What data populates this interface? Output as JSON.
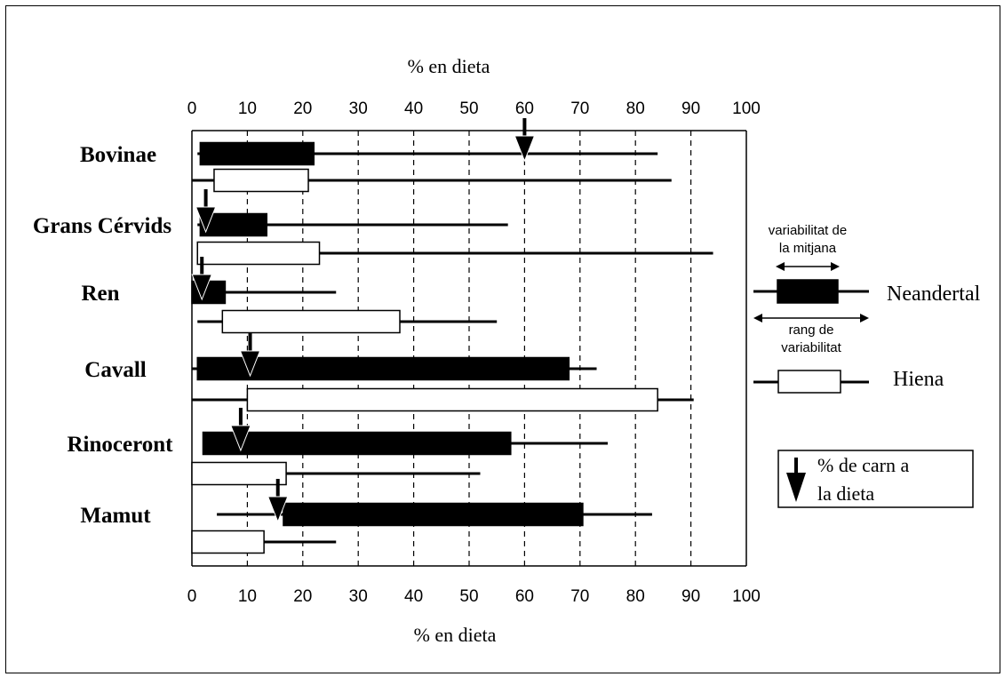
{
  "chart_data": {
    "type": "bar",
    "title": "",
    "xlabel_top": "% en dieta",
    "xlabel_bottom": "% en dieta",
    "xlim": [
      0,
      100
    ],
    "ticks": [
      "0",
      "10",
      "20",
      "30",
      "40",
      "50",
      "60",
      "70",
      "80",
      "90",
      "100"
    ],
    "grid": "vertical dashed at 10..90",
    "categories": [
      "Bovinae",
      "Grans Cérvids",
      "Ren",
      "Cavall",
      "Rinoceront",
      "Mamut"
    ],
    "series": [
      {
        "name": "Neandertal",
        "fill": "#000000",
        "data": [
          {
            "category": "Bovinae",
            "range": [
              1,
              84
            ],
            "box": [
              1.5,
              22
            ]
          },
          {
            "category": "Grans Cérvids",
            "range": [
              1,
              57
            ],
            "box": [
              1.5,
              13.5
            ]
          },
          {
            "category": "Ren",
            "range": [
              0,
              26
            ],
            "box": [
              0,
              6
            ]
          },
          {
            "category": "Cavall",
            "range": [
              0,
              73
            ],
            "box": [
              1,
              68
            ]
          },
          {
            "category": "Rinoceront",
            "range": [
              2,
              75
            ],
            "box": [
              2,
              57.5
            ]
          },
          {
            "category": "Mamut",
            "range": [
              4.5,
              83
            ],
            "box": [
              16.5,
              70.5
            ]
          }
        ]
      },
      {
        "name": "Hiena",
        "fill": "#ffffff",
        "data": [
          {
            "category": "Bovinae",
            "range": [
              0,
              86.5
            ],
            "box": [
              4,
              21
            ]
          },
          {
            "category": "Grans Cérvids",
            "range": [
              1,
              94
            ],
            "box": [
              1,
              23
            ]
          },
          {
            "category": "Ren",
            "range": [
              1,
              55
            ],
            "box": [
              5.5,
              37.5
            ]
          },
          {
            "category": "Cavall",
            "range": [
              0,
              90.5
            ],
            "box": [
              10,
              84
            ]
          },
          {
            "category": "Rinoceront",
            "range": [
              0,
              52
            ],
            "box": [
              0,
              17
            ]
          },
          {
            "category": "Mamut",
            "range": [
              0,
              26
            ],
            "box": [
              0,
              13
            ]
          }
        ]
      }
    ],
    "meat_percentage_arrows": [
      {
        "category": "Bovinae",
        "value": 60
      },
      {
        "category": "Grans Cérvids",
        "value": 2.5
      },
      {
        "category": "Ren",
        "value": 1.8
      },
      {
        "category": "Cavall",
        "value": 10.5
      },
      {
        "category": "Rinoceront",
        "value": 8.8
      },
      {
        "category": "Mamut",
        "value": 15.5
      }
    ],
    "legend": {
      "placement": "right",
      "box_label": [
        "variabilitat de",
        "la mitjana"
      ],
      "range_label": [
        "rang de",
        "variabilitat"
      ],
      "neandertal": "Neandertal",
      "hiena": "Hiena",
      "arrow_label": [
        "% de carn a",
        "la dieta"
      ]
    }
  }
}
